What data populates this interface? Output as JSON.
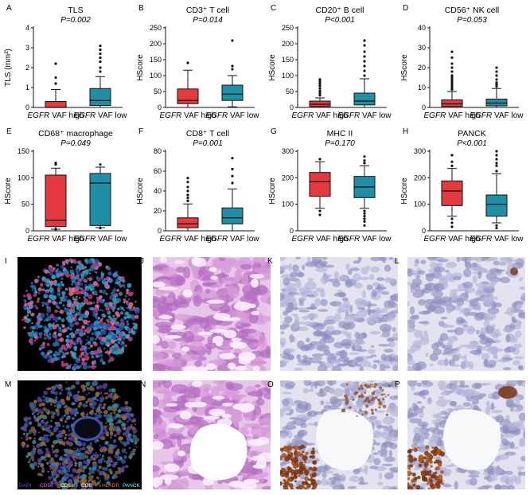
{
  "panels": [
    {
      "letter": "A",
      "title": "TLS",
      "p": "P=0.002",
      "ylabel": "TLS (mm²)",
      "ymax": 4,
      "yticks": [
        0,
        1,
        2,
        3,
        4
      ],
      "groups": [
        {
          "label": "EGFR VAF high",
          "min": 0,
          "q1": 0,
          "median": 0,
          "q3": 0.3,
          "max": 0.9,
          "out": [
            1.2,
            1.5,
            2.2
          ]
        },
        {
          "label": "EGFR VAF low",
          "min": 0,
          "q1": 0.1,
          "median": 0.35,
          "q3": 0.95,
          "max": 1.55,
          "out": [
            1.8,
            2.0,
            2.3,
            2.5,
            2.7,
            2.9,
            3.1
          ]
        }
      ]
    },
    {
      "letter": "B",
      "title": "CD3⁺ T cell",
      "p": "P=0.014",
      "ylabel": "HScore",
      "ymax": 250,
      "yticks": [
        0,
        50,
        100,
        150,
        200,
        250
      ],
      "groups": [
        {
          "label": "EGFR VAF high",
          "min": 0,
          "q1": 12,
          "median": 22,
          "q3": 58,
          "max": 117,
          "out": [
            140
          ]
        },
        {
          "label": "EGFR VAF low",
          "min": 2,
          "q1": 22,
          "median": 42,
          "q3": 70,
          "max": 100,
          "out": [
            120,
            130,
            210
          ]
        }
      ]
    },
    {
      "letter": "C",
      "title": "CD20⁺ B cell",
      "p": "P<0.001",
      "ylabel": "HScore",
      "ymax": 250,
      "yticks": [
        0,
        50,
        100,
        150,
        200,
        250
      ],
      "groups": [
        {
          "label": "EGFR VAF high",
          "min": 0,
          "q1": 3,
          "median": 10,
          "q3": 20,
          "max": 30,
          "out": [
            38,
            45,
            52,
            60,
            68,
            75,
            82,
            88
          ]
        },
        {
          "label": "EGFR VAF low",
          "min": 0,
          "q1": 8,
          "median": 20,
          "q3": 45,
          "max": 90,
          "out": [
            100,
            115,
            130,
            145,
            160,
            175,
            195,
            210
          ]
        }
      ]
    },
    {
      "letter": "D",
      "title": "CD56⁺ NK cell",
      "p": "P=0.053",
      "ylabel": "HScore",
      "ymax": 40,
      "yticks": [
        0,
        10,
        20,
        30,
        40
      ],
      "groups": [
        {
          "label": "EGFR VAF high",
          "min": 0,
          "q1": 0.5,
          "median": 1.8,
          "q3": 3.8,
          "max": 8,
          "out": [
            9,
            10,
            11,
            12,
            13,
            14,
            15,
            16,
            18,
            20,
            22,
            25,
            28
          ]
        },
        {
          "label": "EGFR VAF low",
          "min": 0,
          "q1": 0.8,
          "median": 2.2,
          "q3": 4.2,
          "max": 9.5,
          "out": [
            10.5,
            11.5,
            12.5,
            14,
            16,
            18,
            20
          ]
        }
      ]
    },
    {
      "letter": "E",
      "title": "CD68⁺ macrophage",
      "p": "P=0.049",
      "ylabel": "HScore",
      "ymax": 150,
      "yticks": [
        0,
        50,
        100,
        150
      ],
      "groups": [
        {
          "label": "EGFR VAF high",
          "min": 3,
          "q1": 8,
          "median": 20,
          "q3": 105,
          "max": 118,
          "out": [
            125,
            128,
            3
          ]
        },
        {
          "label": "EGFR VAF low",
          "min": 6,
          "q1": 10,
          "median": 90,
          "q3": 108,
          "max": 120,
          "out": [
            125,
            5
          ]
        }
      ]
    },
    {
      "letter": "F",
      "title": "CD8⁺ T cell",
      "p": "P=0.001",
      "ylabel": "HScore",
      "ymax": 80,
      "yticks": [
        0,
        20,
        40,
        60,
        80
      ],
      "groups": [
        {
          "label": "EGFR VAF high",
          "min": 0,
          "q1": 3,
          "median": 7,
          "q3": 13,
          "max": 27,
          "out": [
            30,
            33,
            36,
            40,
            44,
            49,
            53
          ]
        },
        {
          "label": "EGFR VAF low",
          "min": 0,
          "q1": 7,
          "median": 13,
          "q3": 23,
          "max": 42,
          "out": [
            48,
            55,
            62,
            73
          ]
        }
      ]
    },
    {
      "letter": "G",
      "title": "MHC II",
      "p": "P=0.170",
      "ylabel": "HScore",
      "ymax": 300,
      "yticks": [
        0,
        100,
        200,
        300
      ],
      "groups": [
        {
          "label": "EGFR VAF high",
          "min": 85,
          "q1": 130,
          "median": 185,
          "q3": 220,
          "max": 260,
          "out": [
            270,
            75,
            60
          ]
        },
        {
          "label": "EGFR VAF low",
          "min": 85,
          "q1": 125,
          "median": 165,
          "q3": 205,
          "max": 245,
          "out": [
            255,
            265,
            280,
            75,
            65,
            55,
            45,
            35,
            20
          ]
        }
      ]
    },
    {
      "letter": "H",
      "title": "PANCK",
      "p": "P<0.001",
      "ylabel": "HScore",
      "ymax": 300,
      "yticks": [
        0,
        100,
        200,
        300
      ],
      "groups": [
        {
          "label": "EGFR VAF high",
          "min": 55,
          "q1": 95,
          "median": 150,
          "q3": 188,
          "max": 235,
          "out": [
            245,
            260,
            285,
            45,
            30,
            15
          ]
        },
        {
          "label": "EGFR VAF low",
          "min": 30,
          "q1": 55,
          "median": 100,
          "q3": 135,
          "max": 215,
          "out": [
            225,
            245,
            255,
            270,
            285,
            300,
            20,
            10
          ]
        }
      ]
    }
  ],
  "image_panels": [
    {
      "letter": "I",
      "kind": "fluor1"
    },
    {
      "letter": "J",
      "kind": "he1"
    },
    {
      "letter": "K",
      "kind": "ihc1"
    },
    {
      "letter": "L",
      "kind": "ihc2"
    },
    {
      "letter": "M",
      "kind": "fluor2"
    },
    {
      "letter": "N",
      "kind": "he2"
    },
    {
      "letter": "O",
      "kind": "ihc3"
    },
    {
      "letter": "P",
      "kind": "ihc4"
    }
  ],
  "legend": [
    "DAPI",
    "CD56",
    "CD68",
    "CD8",
    "HLADR",
    "PANCK"
  ],
  "legend_colors": [
    "#3b5bff",
    "#ff66ff",
    "#ffff66",
    "#ffffff",
    "#ff7733",
    "#66ffff"
  ],
  "colors": {
    "high": "#e23a3e",
    "low": "#1f8fa6"
  }
}
